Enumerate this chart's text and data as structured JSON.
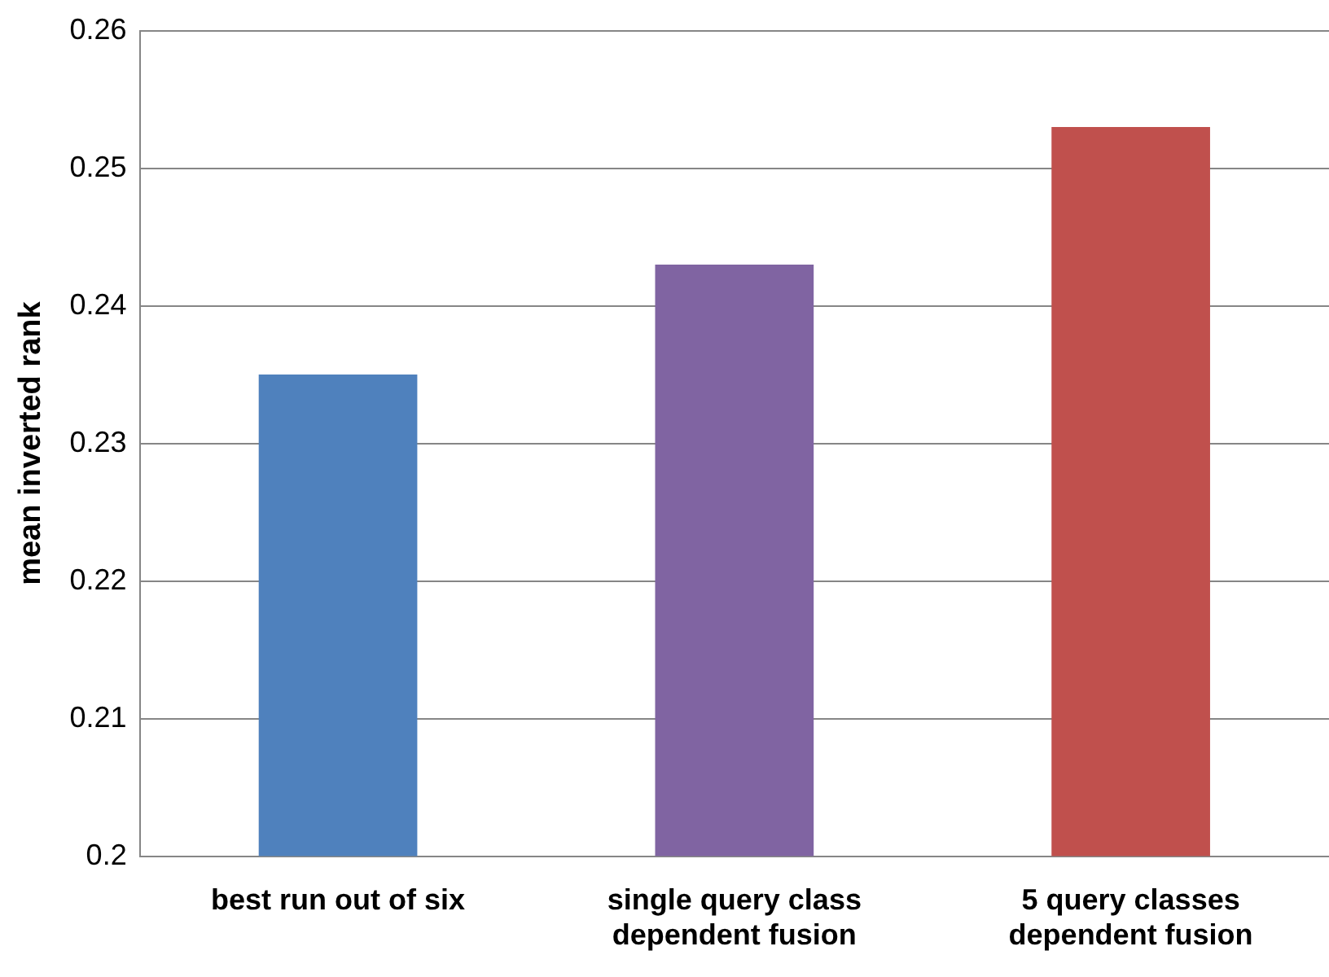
{
  "chart_data": {
    "type": "bar",
    "ylabel": "mean inverted rank",
    "categories": [
      "best run out of six",
      "single query class dependent fusion",
      "5 query classes dependent fusion"
    ],
    "values": [
      0.235,
      0.243,
      0.253
    ],
    "colors": [
      "#4f81bd",
      "#8064a2",
      "#c0504d"
    ],
    "ylim": [
      0.2,
      0.26
    ],
    "yticks": [
      0.2,
      0.21,
      0.22,
      0.23,
      0.24,
      0.25,
      0.26
    ],
    "grid": "y",
    "legend": false
  }
}
